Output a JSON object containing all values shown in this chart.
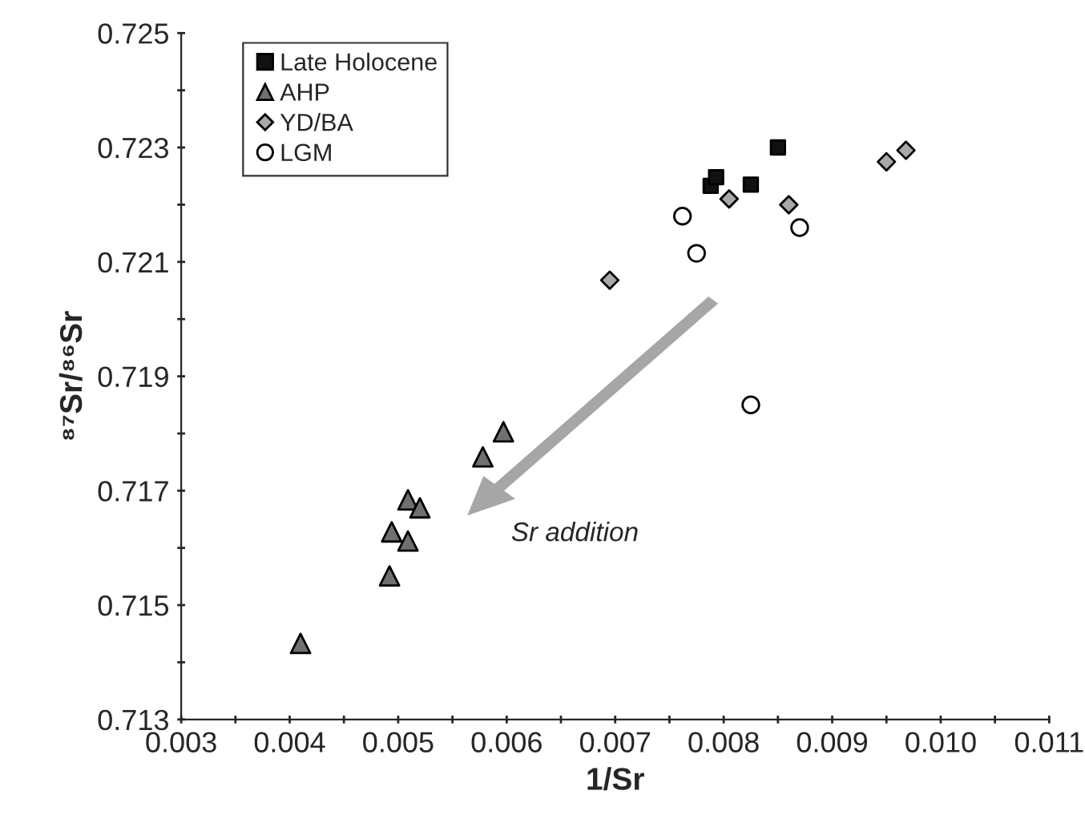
{
  "chart_data": {
    "type": "scatter",
    "xlabel": "1/Sr",
    "ylabel": "⁸⁷Sr/⁸⁶Sr",
    "legend": "top left",
    "grid": false,
    "xlim": [
      0.003,
      0.011
    ],
    "ylim": [
      0.713,
      0.725
    ],
    "xticks": [
      0.003,
      {
        "value": 0.0035,
        "label": null
      },
      0.004,
      {
        "value": 0.0045,
        "label": null
      },
      0.005,
      {
        "value": 0.0055,
        "label": null
      },
      0.006,
      {
        "value": 0.0065,
        "label": null
      },
      0.007,
      {
        "value": 0.0075,
        "label": null
      },
      0.008,
      {
        "value": 0.0085,
        "label": null
      },
      0.009,
      {
        "value": 0.0095,
        "label": null
      },
      {
        "value": 0.01,
        "label": "0.010"
      },
      {
        "value": 0.0105,
        "label": null
      },
      0.011
    ],
    "yticks": [
      0.713,
      {
        "value": 0.714,
        "label": null
      },
      0.715,
      {
        "value": 0.716,
        "label": null
      },
      0.717,
      {
        "value": 0.718,
        "label": null
      },
      0.719,
      {
        "value": 0.72,
        "label": null
      },
      0.721,
      {
        "value": 0.722,
        "label": null
      },
      0.723,
      {
        "value": 0.724,
        "label": null
      },
      0.725
    ],
    "annotations": [
      "Sr addition"
    ],
    "series": [
      {
        "name": "Late Holocene",
        "color": "#111111",
        "marker": "square",
        "x": [
          0.00788,
          0.00793,
          0.00825,
          0.0085
        ],
        "values": [
          0.72233,
          0.72248,
          0.72235,
          0.723
        ]
      },
      {
        "name": "AHP",
        "color": "#707070",
        "marker": "triangle",
        "x": [
          0.0041,
          0.00492,
          0.00494,
          0.00509,
          0.00509,
          0.0052,
          0.00578,
          0.00597
        ],
        "values": [
          0.71433,
          0.71551,
          0.71628,
          0.71612,
          0.71684,
          0.7167,
          0.71759,
          0.71803
        ]
      },
      {
        "name": "YD/BA",
        "color": "#a8a8a8",
        "marker": "diamond",
        "x": [
          0.00695,
          0.00805,
          0.0086,
          0.0095,
          0.00968
        ],
        "values": [
          0.72068,
          0.7221,
          0.722,
          0.72275,
          0.72295
        ]
      },
      {
        "name": "LGM",
        "color": "#ffffff",
        "marker": "circle",
        "x": [
          0.00762,
          0.00775,
          0.0087,
          0.00825
        ],
        "values": [
          0.7218,
          0.72115,
          0.7216,
          0.7185
        ]
      }
    ]
  }
}
